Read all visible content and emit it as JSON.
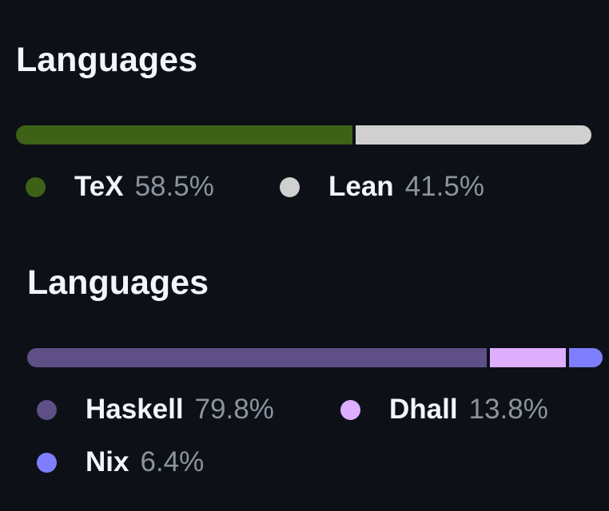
{
  "panels": [
    {
      "title": "Languages",
      "languages": [
        {
          "name": "TeX",
          "percent": "58.5%",
          "value": 58.5,
          "color": "#3d6117"
        },
        {
          "name": "Lean",
          "percent": "41.5%",
          "value": 41.5,
          "color": "#d0d0d0"
        }
      ]
    },
    {
      "title": "Languages",
      "languages": [
        {
          "name": "Haskell",
          "percent": "79.8%",
          "value": 79.8,
          "color": "#5e5086"
        },
        {
          "name": "Dhall",
          "percent": "13.8%",
          "value": 13.8,
          "color": "#dfafff"
        },
        {
          "name": "Nix",
          "percent": "6.4%",
          "value": 6.4,
          "color": "#7e7eff"
        }
      ]
    }
  ]
}
